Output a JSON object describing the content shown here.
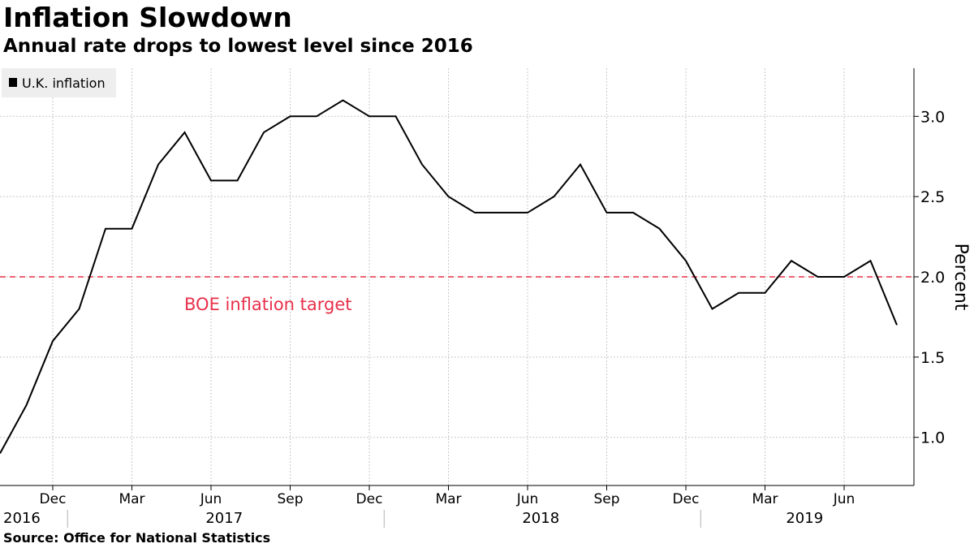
{
  "header": {
    "title": "Inflation Slowdown",
    "subtitle": "Annual rate drops to lowest level since 2016"
  },
  "footer": {
    "source": "Source:  Office for National Statistics"
  },
  "colors": {
    "line": "#000000",
    "target": "#e8304a",
    "grid": "#c8c8c8",
    "legend_bg": "#eeeeee"
  },
  "chart_data": {
    "type": "line",
    "title": "Inflation Slowdown",
    "subtitle": "Annual rate drops to lowest level since 2016",
    "ylabel": "Percent",
    "xlabel": "",
    "ylim": [
      0.7,
      3.3
    ],
    "yticks": [
      1.0,
      1.5,
      2.0,
      2.5,
      3.0
    ],
    "ytick_labels": [
      "1.0",
      "1.5",
      "2.0",
      "2.5",
      "3.0"
    ],
    "legend": [
      "U.K. inflation"
    ],
    "legend_position": "top-left",
    "grid": true,
    "x": [
      "2016-10",
      "2016-11",
      "2016-12",
      "2017-01",
      "2017-02",
      "2017-03",
      "2017-04",
      "2017-05",
      "2017-06",
      "2017-07",
      "2017-08",
      "2017-09",
      "2017-10",
      "2017-11",
      "2017-12",
      "2018-01",
      "2018-02",
      "2018-03",
      "2018-04",
      "2018-05",
      "2018-06",
      "2018-07",
      "2018-08",
      "2018-09",
      "2018-10",
      "2018-11",
      "2018-12",
      "2019-01",
      "2019-02",
      "2019-03",
      "2019-04",
      "2019-05",
      "2019-06",
      "2019-07",
      "2019-08"
    ],
    "series": [
      {
        "name": "U.K. inflation",
        "values": [
          0.9,
          1.2,
          1.6,
          1.8,
          2.3,
          2.3,
          2.7,
          2.9,
          2.6,
          2.6,
          2.9,
          3.0,
          3.0,
          3.1,
          3.0,
          3.0,
          2.7,
          2.5,
          2.4,
          2.4,
          2.4,
          2.5,
          2.7,
          2.4,
          2.4,
          2.3,
          2.1,
          1.8,
          1.9,
          1.9,
          2.1,
          2.0,
          2.0,
          2.1,
          1.7
        ]
      }
    ],
    "reference_line": {
      "value": 2.0,
      "label": "BOE inflation target"
    },
    "month_ticks": [
      {
        "x": "2016-12",
        "label": "Dec"
      },
      {
        "x": "2017-03",
        "label": "Mar"
      },
      {
        "x": "2017-06",
        "label": "Jun"
      },
      {
        "x": "2017-09",
        "label": "Sep"
      },
      {
        "x": "2017-12",
        "label": "Dec"
      },
      {
        "x": "2018-03",
        "label": "Mar"
      },
      {
        "x": "2018-06",
        "label": "Jun"
      },
      {
        "x": "2018-09",
        "label": "Sep"
      },
      {
        "x": "2018-12",
        "label": "Dec"
      },
      {
        "x": "2019-03",
        "label": "Mar"
      },
      {
        "x": "2019-06",
        "label": "Jun"
      }
    ],
    "year_labels": [
      {
        "label": "2016",
        "from": "2016-10",
        "to": "2016-12"
      },
      {
        "label": "2017",
        "from": "2017-01",
        "to": "2017-12"
      },
      {
        "label": "2018",
        "from": "2018-01",
        "to": "2018-12"
      },
      {
        "label": "2019",
        "from": "2019-01",
        "to": "2019-08"
      }
    ]
  }
}
